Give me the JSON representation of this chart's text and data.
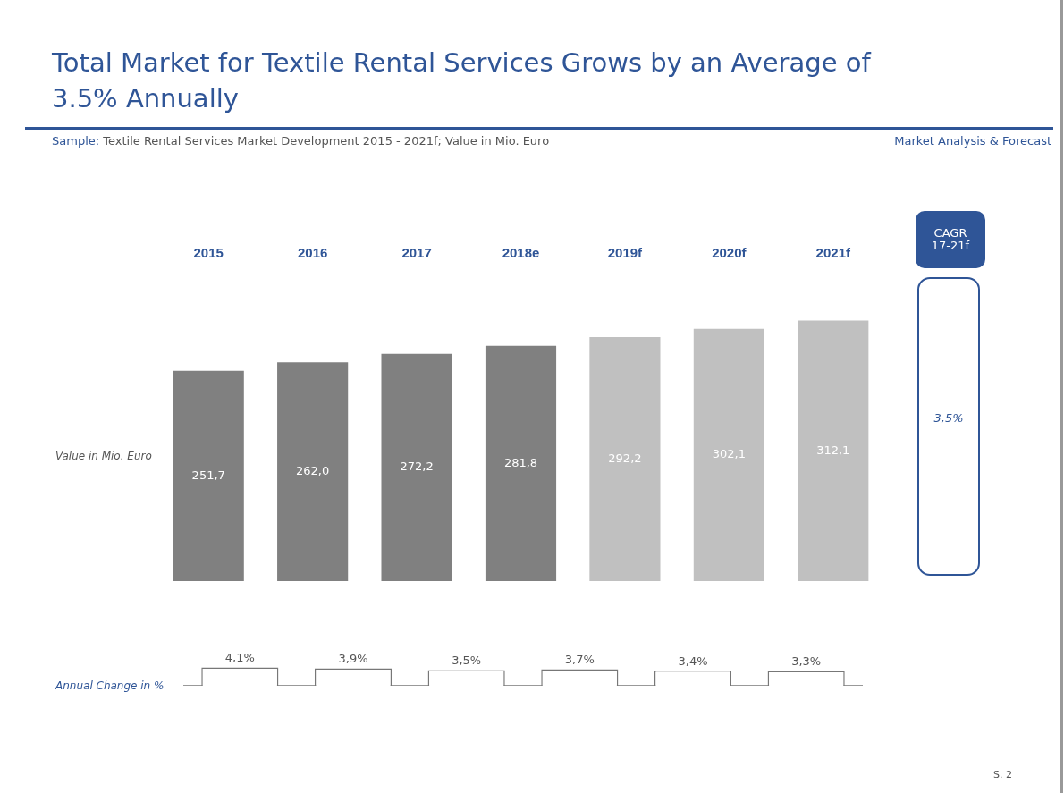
{
  "chart_data": [
    {
      "type": "bar",
      "title": "Total Market for Textile Rental Services Grows by an Average of 3.5% Annually",
      "subtitle": "Sample: Textile Rental Services Market Development 2015 - 2021f; Value in Mio. Euro",
      "annotations": [
        "Market Analysis & Forecast",
        "S. 2"
      ],
      "ylabel": "Value in Mio. Euro",
      "categories": [
        "2015",
        "2016",
        "2017",
        "2018e",
        "2019f",
        "2020f",
        "2021f"
      ],
      "values": [
        251.7,
        262.0,
        272.2,
        281.8,
        292.2,
        302.1,
        312.1
      ],
      "colors": [
        "#808080",
        "#808080",
        "#808080",
        "#808080",
        "#c0c0c0",
        "#c0c0c0",
        "#c0c0c0"
      ],
      "value_labels": [
        "251,7",
        "262,0",
        "272,2",
        "281,8",
        "292,2",
        "302,1",
        "312,1"
      ],
      "tick_labels": "x",
      "grid": false,
      "legend": false
    },
    {
      "type": "bar",
      "ylabel": "Annual Change in %",
      "categories": [
        null,
        null,
        null,
        null,
        null,
        null
      ],
      "values": [
        4.1,
        3.9,
        3.5,
        3.7,
        3.4,
        3.3
      ],
      "color": "#ffffff",
      "value_labels": [
        "4,1%",
        "3,9%",
        "3,5%",
        "3,7%",
        "3,4%",
        "3,3%"
      ],
      "tick_labels": false,
      "grid": false,
      "legend": false
    },
    {
      "type": "other",
      "title": "CAGR 17-21f",
      "annotations": [
        "3,5%"
      ]
    }
  ]
}
